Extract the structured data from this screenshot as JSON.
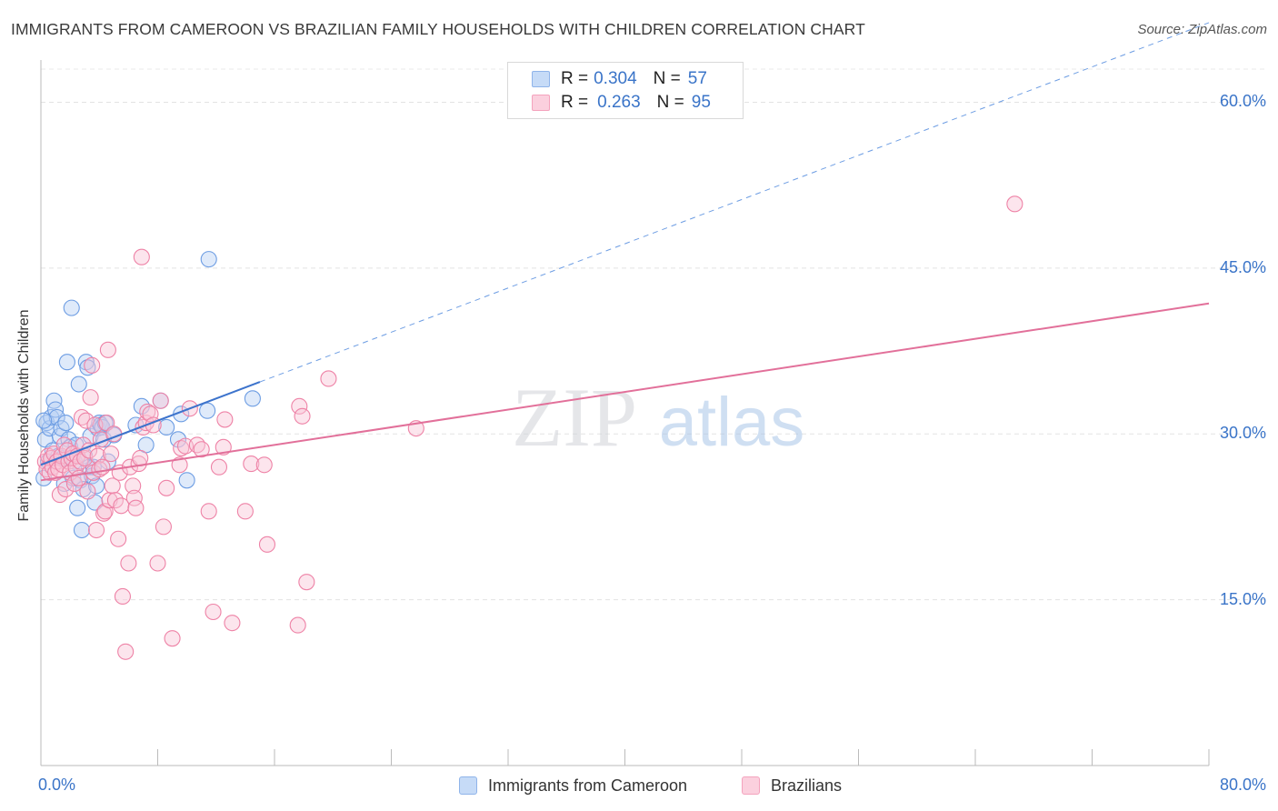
{
  "title": "IMMIGRANTS FROM CAMEROON VS BRAZILIAN FAMILY HOUSEHOLDS WITH CHILDREN CORRELATION CHART",
  "source": "Source: ZipAtlas.com",
  "watermark": {
    "zip": "ZIP",
    "atlas": "atlas"
  },
  "legend_top": {
    "rows": [
      {
        "r_label": "R =",
        "r_value": "0.304",
        "n_label": "N =",
        "n_value": "57",
        "color": "#8fb4ea"
      },
      {
        "r_label": "R =",
        "r_value": "0.263",
        "n_label": "N =",
        "n_value": "95",
        "color": "#f4a3bd"
      }
    ]
  },
  "legend_bottom": [
    {
      "label": "Immigrants from Cameroon",
      "color": "#8fb4ea"
    },
    {
      "label": "Brazilians",
      "color": "#f4a3bd"
    }
  ],
  "chart_data": {
    "type": "scatter",
    "title": "IMMIGRANTS FROM CAMEROON VS BRAZILIAN FAMILY HOUSEHOLDS WITH CHILDREN CORRELATION CHART",
    "xlabel": "",
    "ylabel": "Family Households with Children",
    "xlim": [
      0,
      80
    ],
    "ylim": [
      0,
      63
    ],
    "x_tick_labels": [
      "0.0%",
      "80.0%"
    ],
    "y_ticks": [
      15,
      30,
      45,
      60
    ],
    "y_tick_labels": [
      "15.0%",
      "30.0%",
      "45.0%",
      "60.0%"
    ],
    "grid": "horizontal dashed",
    "legend_position": "top-center",
    "series": [
      {
        "name": "Immigrants from Cameroon",
        "color": "#6d9de3",
        "fill": "#b9d1f3",
        "trend": {
          "x0": 0,
          "y0": 27.2,
          "x1": 15.0,
          "y1": 34.7,
          "extend_to_x": 80,
          "style": "solid then dashed"
        },
        "points": [
          [
            0.2,
            26.0
          ],
          [
            0.3,
            29.5
          ],
          [
            0.4,
            31.0
          ],
          [
            0.5,
            27.5
          ],
          [
            0.6,
            30.5
          ],
          [
            0.7,
            31.5
          ],
          [
            0.8,
            28.5
          ],
          [
            0.9,
            33.0
          ],
          [
            1.0,
            32.2
          ],
          [
            1.1,
            31.5
          ],
          [
            1.2,
            28.0
          ],
          [
            1.3,
            29.8
          ],
          [
            1.4,
            30.5
          ],
          [
            1.5,
            27.8
          ],
          [
            1.6,
            25.5
          ],
          [
            1.7,
            31.0
          ],
          [
            1.8,
            36.5
          ],
          [
            1.9,
            29.5
          ],
          [
            2.0,
            28.8
          ],
          [
            2.1,
            41.4
          ],
          [
            2.2,
            26.0
          ],
          [
            2.3,
            27.5
          ],
          [
            2.4,
            29.0
          ],
          [
            2.5,
            23.3
          ],
          [
            2.6,
            34.5
          ],
          [
            2.7,
            25.8
          ],
          [
            2.8,
            21.3
          ],
          [
            2.9,
            25.0
          ],
          [
            3.0,
            28.0
          ],
          [
            3.1,
            36.5
          ],
          [
            3.2,
            36.0
          ],
          [
            3.3,
            27.0
          ],
          [
            3.4,
            29.8
          ],
          [
            3.5,
            26.2
          ],
          [
            3.6,
            27.0
          ],
          [
            3.7,
            23.8
          ],
          [
            3.8,
            25.3
          ],
          [
            3.9,
            30.5
          ],
          [
            4.0,
            31.0
          ],
          [
            4.1,
            30.8
          ],
          [
            4.2,
            30.6
          ],
          [
            4.3,
            29.5
          ],
          [
            4.4,
            31.0
          ],
          [
            4.6,
            27.5
          ],
          [
            5.0,
            29.9
          ],
          [
            6.5,
            30.8
          ],
          [
            6.9,
            32.5
          ],
          [
            7.2,
            29.0
          ],
          [
            8.2,
            33.0
          ],
          [
            8.6,
            30.6
          ],
          [
            9.4,
            29.5
          ],
          [
            9.6,
            31.8
          ],
          [
            10.0,
            25.8
          ],
          [
            11.4,
            32.1
          ],
          [
            11.5,
            45.8
          ],
          [
            14.5,
            33.2
          ],
          [
            0.2,
            31.2
          ]
        ]
      },
      {
        "name": "Brazilians",
        "color": "#ee82a6",
        "fill": "#f8c6d6",
        "trend": {
          "x0": 0,
          "y0": 25.8,
          "x1": 80,
          "y1": 41.8,
          "style": "solid"
        },
        "points": [
          [
            0.3,
            27.5
          ],
          [
            0.4,
            26.8
          ],
          [
            0.5,
            28.0
          ],
          [
            0.6,
            26.5
          ],
          [
            0.7,
            27.8
          ],
          [
            0.8,
            27.0
          ],
          [
            0.9,
            28.2
          ],
          [
            1.0,
            26.5
          ],
          [
            1.1,
            27.5
          ],
          [
            1.2,
            26.8
          ],
          [
            1.3,
            24.5
          ],
          [
            1.4,
            28.0
          ],
          [
            1.5,
            27.2
          ],
          [
            1.6,
            29.0
          ],
          [
            1.7,
            25.0
          ],
          [
            1.8,
            28.5
          ],
          [
            1.9,
            27.5
          ],
          [
            2.0,
            26.5
          ],
          [
            2.1,
            27.8
          ],
          [
            2.2,
            28.2
          ],
          [
            2.3,
            25.5
          ],
          [
            2.4,
            27.0
          ],
          [
            2.5,
            28.0
          ],
          [
            2.6,
            26.0
          ],
          [
            2.7,
            27.5
          ],
          [
            2.8,
            31.5
          ],
          [
            2.9,
            29.0
          ],
          [
            3.0,
            27.8
          ],
          [
            3.1,
            31.2
          ],
          [
            3.2,
            24.8
          ],
          [
            3.3,
            28.5
          ],
          [
            3.4,
            33.3
          ],
          [
            3.5,
            36.2
          ],
          [
            3.6,
            26.5
          ],
          [
            3.7,
            30.8
          ],
          [
            3.8,
            21.3
          ],
          [
            3.9,
            28.0
          ],
          [
            4.0,
            26.8
          ],
          [
            4.1,
            29.5
          ],
          [
            4.2,
            27.0
          ],
          [
            4.3,
            22.8
          ],
          [
            4.4,
            23.0
          ],
          [
            4.5,
            31.0
          ],
          [
            4.6,
            37.6
          ],
          [
            4.7,
            24.0
          ],
          [
            4.8,
            28.2
          ],
          [
            4.9,
            25.3
          ],
          [
            5.0,
            30.0
          ],
          [
            5.1,
            24.0
          ],
          [
            5.3,
            20.5
          ],
          [
            5.4,
            26.5
          ],
          [
            5.5,
            23.5
          ],
          [
            5.6,
            15.3
          ],
          [
            5.8,
            10.3
          ],
          [
            6.0,
            18.3
          ],
          [
            6.1,
            27.0
          ],
          [
            6.3,
            25.3
          ],
          [
            6.4,
            24.2
          ],
          [
            6.5,
            23.3
          ],
          [
            6.7,
            27.3
          ],
          [
            6.8,
            27.8
          ],
          [
            6.9,
            46.0
          ],
          [
            7.0,
            30.6
          ],
          [
            7.2,
            31.0
          ],
          [
            7.3,
            32.0
          ],
          [
            7.5,
            31.8
          ],
          [
            7.7,
            30.8
          ],
          [
            8.0,
            18.3
          ],
          [
            8.2,
            33.0
          ],
          [
            8.4,
            21.6
          ],
          [
            8.6,
            25.1
          ],
          [
            9.0,
            11.5
          ],
          [
            9.5,
            27.2
          ],
          [
            9.6,
            28.7
          ],
          [
            9.9,
            28.9
          ],
          [
            10.2,
            32.3
          ],
          [
            10.7,
            29.0
          ],
          [
            11.0,
            28.6
          ],
          [
            11.5,
            23.0
          ],
          [
            11.8,
            13.9
          ],
          [
            12.2,
            27.0
          ],
          [
            12.5,
            28.8
          ],
          [
            12.6,
            31.3
          ],
          [
            13.1,
            12.9
          ],
          [
            14.0,
            23.0
          ],
          [
            14.4,
            27.3
          ],
          [
            15.3,
            27.2
          ],
          [
            15.5,
            20.0
          ],
          [
            17.6,
            12.7
          ],
          [
            17.7,
            32.5
          ],
          [
            17.9,
            31.6
          ],
          [
            18.2,
            16.6
          ],
          [
            19.7,
            35.0
          ],
          [
            25.7,
            30.5
          ],
          [
            66.7,
            50.8
          ]
        ]
      }
    ]
  }
}
